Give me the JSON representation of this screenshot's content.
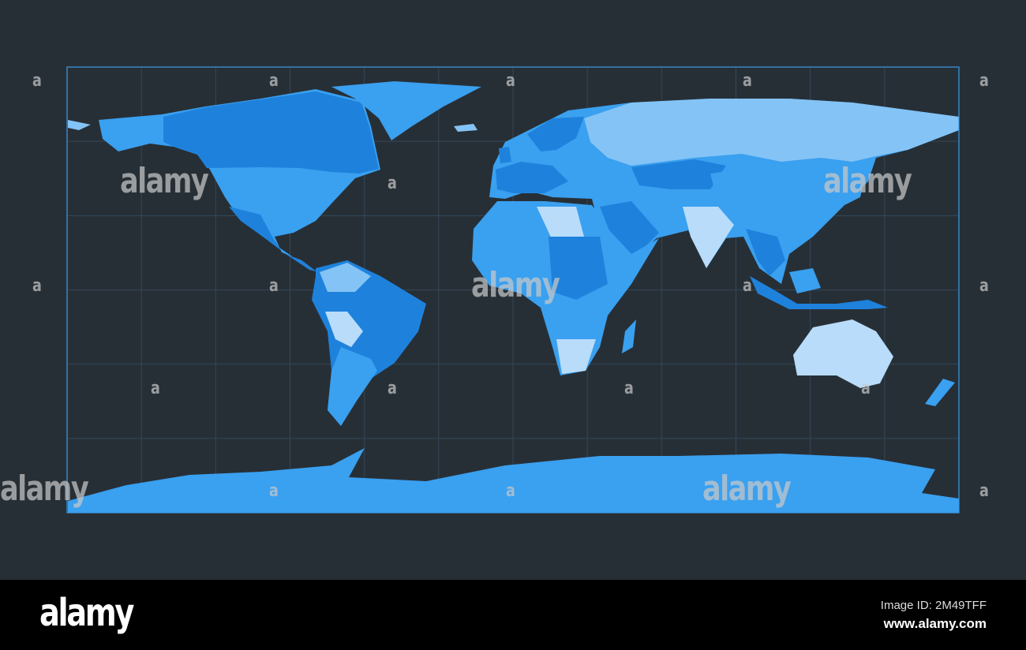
{
  "map": {
    "projection": "equirectangular",
    "graticule_step_degrees": 30,
    "colors": {
      "background": "#272f36",
      "ocean": "#272f36",
      "graticule": "#33475a",
      "frame": "#3a9be8",
      "land_shades": [
        "#3aa0f0",
        "#1e82dc",
        "#84c3f5",
        "#b8dcfa"
      ]
    }
  },
  "watermark": {
    "big_text": "alamy",
    "small_text": "a"
  },
  "footer": {
    "logo": "alamy",
    "image_id": "Image ID: 2M49TFF",
    "url": "www.alamy.com"
  }
}
